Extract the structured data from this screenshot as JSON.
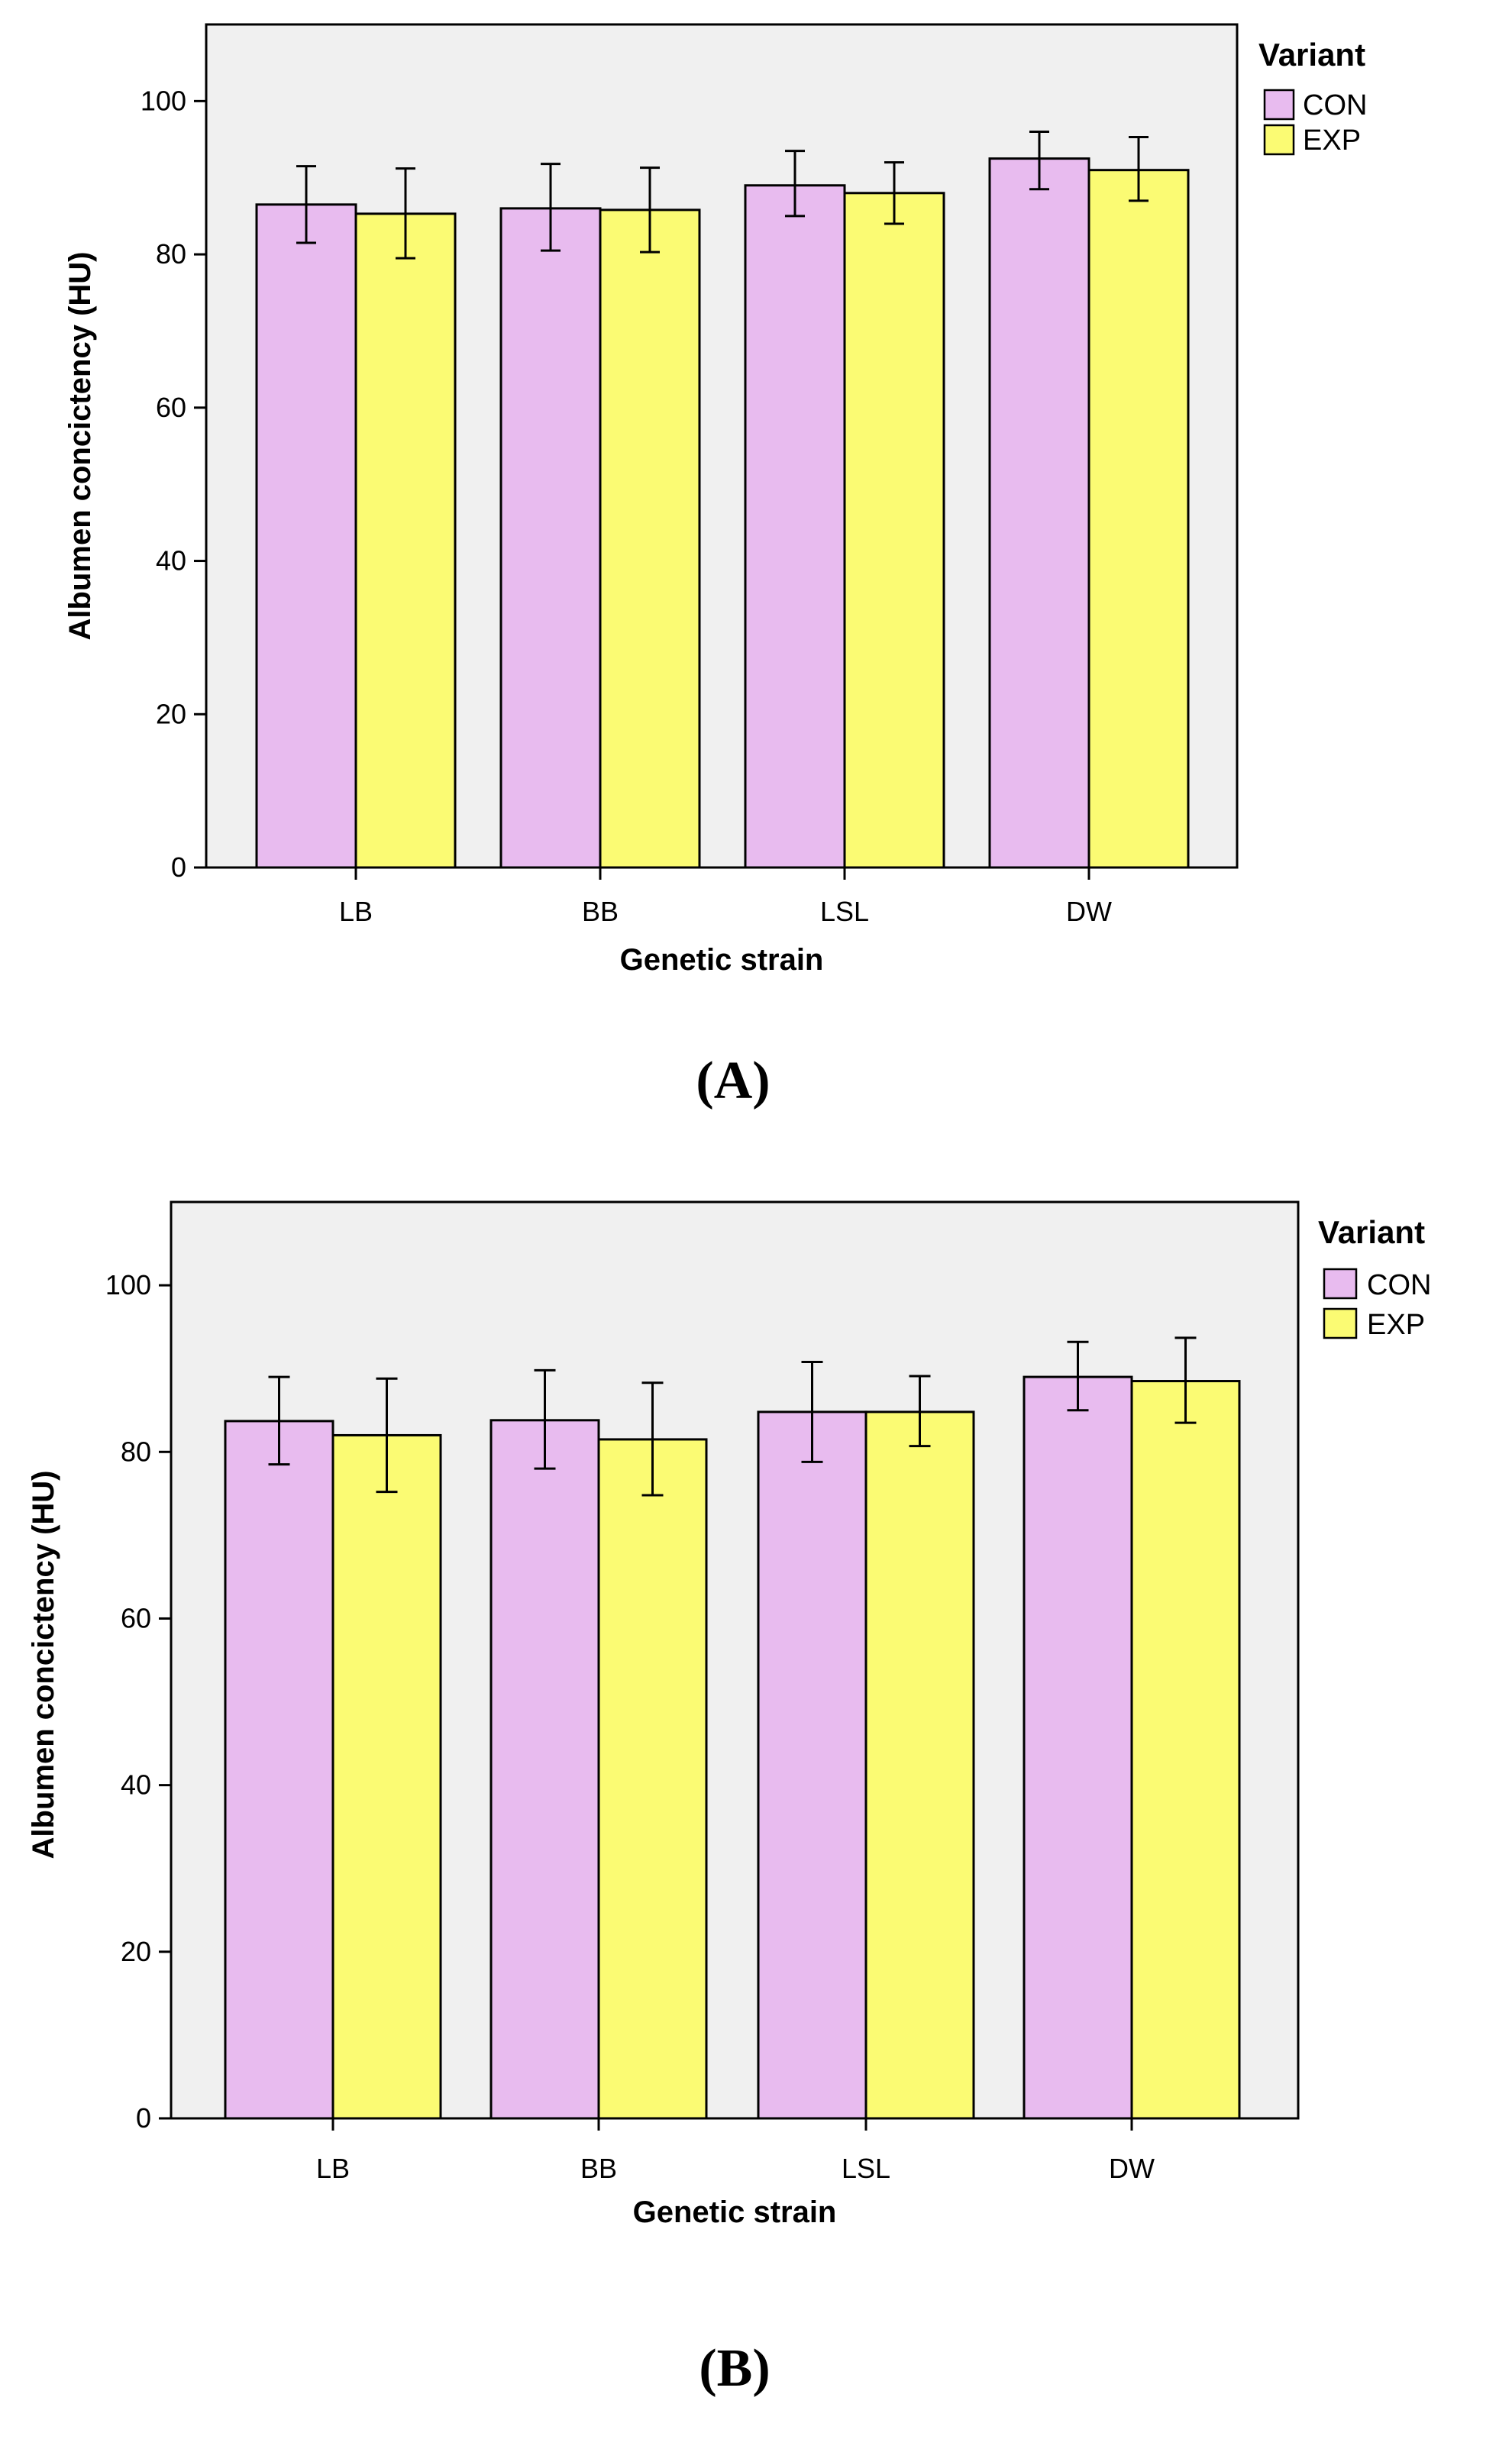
{
  "colors": {
    "CON": "#e8bbef",
    "EXP": "#fbfb73",
    "plot_bg": "#f0f0f0"
  },
  "chart_data": [
    {
      "type": "bar",
      "panel_label": "(A)",
      "categories": [
        "LB",
        "BB",
        "LSL",
        "DW"
      ],
      "xlabel": "Genetic strain",
      "ylabel": "Albumen concictency (HU)",
      "ylim": [
        0,
        110
      ],
      "yticks": [
        "0",
        "20",
        "40",
        "60",
        "80",
        "100"
      ],
      "legend_title": "Variant",
      "legend_position": "top-right, outside plot",
      "series": [
        {
          "name": "CON",
          "values": [
            86.5,
            86,
            89,
            92.5
          ],
          "err_low": [
            81.5,
            80.5,
            85,
            88.5
          ],
          "err_high": [
            91.5,
            91.8,
            93.5,
            96
          ]
        },
        {
          "name": "EXP",
          "values": [
            85.3,
            85.8,
            88,
            91
          ],
          "err_low": [
            79.5,
            80.3,
            84,
            87
          ],
          "err_high": [
            91.2,
            91.3,
            92,
            95.3
          ]
        }
      ]
    },
    {
      "type": "bar",
      "panel_label": "(B)",
      "categories": [
        "LB",
        "BB",
        "LSL",
        "DW"
      ],
      "xlabel": "Genetic strain",
      "ylabel": "Albumen concictency (HU)",
      "ylim": [
        0,
        110
      ],
      "yticks": [
        "0",
        "20",
        "40",
        "60",
        "80",
        "100"
      ],
      "legend_title": "Variant",
      "legend_position": "top-right, outside plot",
      "series": [
        {
          "name": "CON",
          "values": [
            83.7,
            83.8,
            84.8,
            89
          ],
          "err_low": [
            78.5,
            78,
            78.8,
            85
          ],
          "err_high": [
            89,
            89.8,
            90.8,
            93.2
          ]
        },
        {
          "name": "EXP",
          "values": [
            82,
            81.5,
            84.8,
            88.5
          ],
          "err_low": [
            75.2,
            74.8,
            80.7,
            83.5
          ],
          "err_high": [
            88.8,
            88.3,
            89.1,
            93.7
          ]
        }
      ]
    }
  ]
}
